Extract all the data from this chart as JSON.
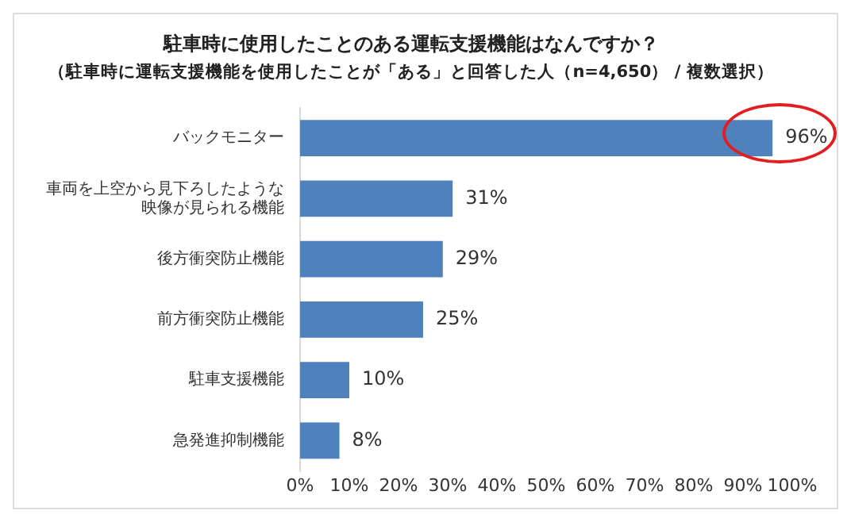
{
  "chart_data": {
    "type": "bar",
    "orientation": "horizontal",
    "title": "駐車時に使用したことのある運転支援機能はなんですか？",
    "subtitle": "（駐車時に運転支援機能を使用したことが「ある」と回答した人（n=4,650） / 複数選択）",
    "categories": [
      "バックモニター",
      "車両を上空から見下ろしたような映像が見られる機能",
      "後方衝突防止機能",
      "前方衝突防止機能",
      "駐車支援機能",
      "急発進抑制機能"
    ],
    "values": [
      96,
      31,
      29,
      25,
      10,
      8
    ],
    "value_labels": [
      "96%",
      "31%",
      "29%",
      "25%",
      "10%",
      "8%"
    ],
    "color": "#4f81bd",
    "xlim": [
      0,
      100
    ],
    "xticks": [
      {
        "value": 0,
        "label": "0%"
      },
      {
        "value": 10,
        "label": "10%"
      },
      {
        "value": 20,
        "label": "20%"
      },
      {
        "value": 30,
        "label": "30%"
      },
      {
        "value": 40,
        "label": "40%"
      },
      {
        "value": 50,
        "label": "50%"
      },
      {
        "value": 60,
        "label": "60%"
      },
      {
        "value": 70,
        "label": "70%"
      },
      {
        "value": 80,
        "label": "80%"
      },
      {
        "value": 90,
        "label": "90%"
      },
      {
        "value": 100,
        "label": "100%"
      }
    ],
    "grid": false,
    "legend": false
  }
}
